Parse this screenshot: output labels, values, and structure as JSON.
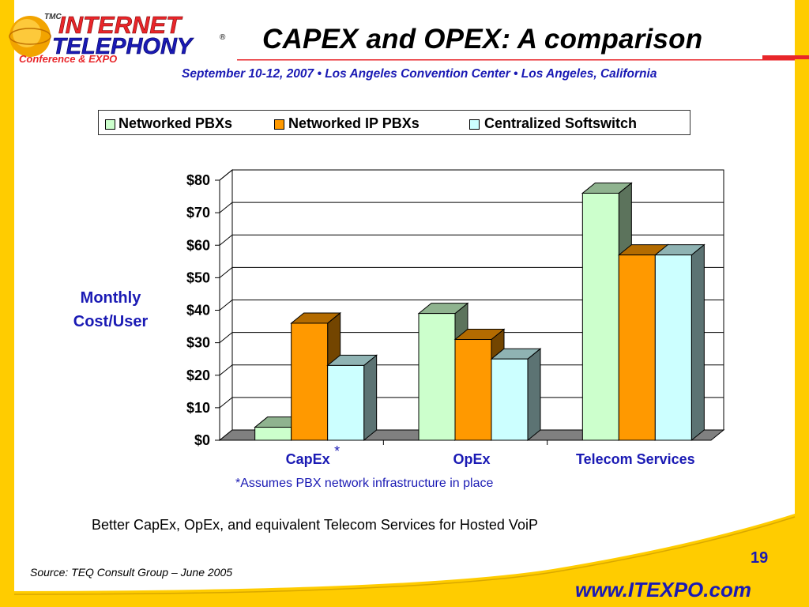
{
  "slide": {
    "title": "CAPEX and OPEX: A comparison",
    "subtitle": "September 10-12, 2007 • Los Angeles Convention Center • Los Angeles, California",
    "caption": "Better CapEx, OpEx, and equivalent Telecom Services for Hosted VoiP",
    "footnote": "*Assumes PBX network infrastructure in place",
    "source": "Source: TEQ Consult Group – June 2005",
    "page_number": "19",
    "website": "www.ITEXPO.com"
  },
  "logo": {
    "line1": "INTERNET",
    "line2": "TELEPHONY",
    "line3": "Conference & EXPO",
    "badge": "TMC",
    "registered": "®"
  },
  "colors": {
    "border_yellow": "#ffcc00",
    "accent_red": "#e8262a",
    "text_blue": "#1a1ab4",
    "series_1": "#ccffcc",
    "series_2": "#ff9900",
    "series_3": "#ccffff"
  },
  "chart_data": {
    "type": "bar",
    "title": "",
    "ylabel": "Monthly Cost/User",
    "ylabel_lines": [
      "Monthly",
      "Cost/User"
    ],
    "xlabel": "",
    "categories": [
      "CapEx",
      "OpEx",
      "Telecom Services"
    ],
    "category_marks": [
      "*",
      "",
      ""
    ],
    "ylim": [
      0,
      80
    ],
    "yticks": [
      "$0",
      "$10",
      "$20",
      "$30",
      "$40",
      "$50",
      "$60",
      "$70",
      "$80"
    ],
    "grid": true,
    "legend_position": "top",
    "series": [
      {
        "name": "Networked PBXs",
        "values": [
          4,
          39,
          76
        ],
        "color": "#ccffcc"
      },
      {
        "name": "Networked IP PBXs",
        "values": [
          36,
          31,
          57
        ],
        "color": "#ff9900"
      },
      {
        "name": "Centralized Softswitch",
        "values": [
          23,
          25,
          57
        ],
        "color": "#ccffff"
      }
    ]
  }
}
